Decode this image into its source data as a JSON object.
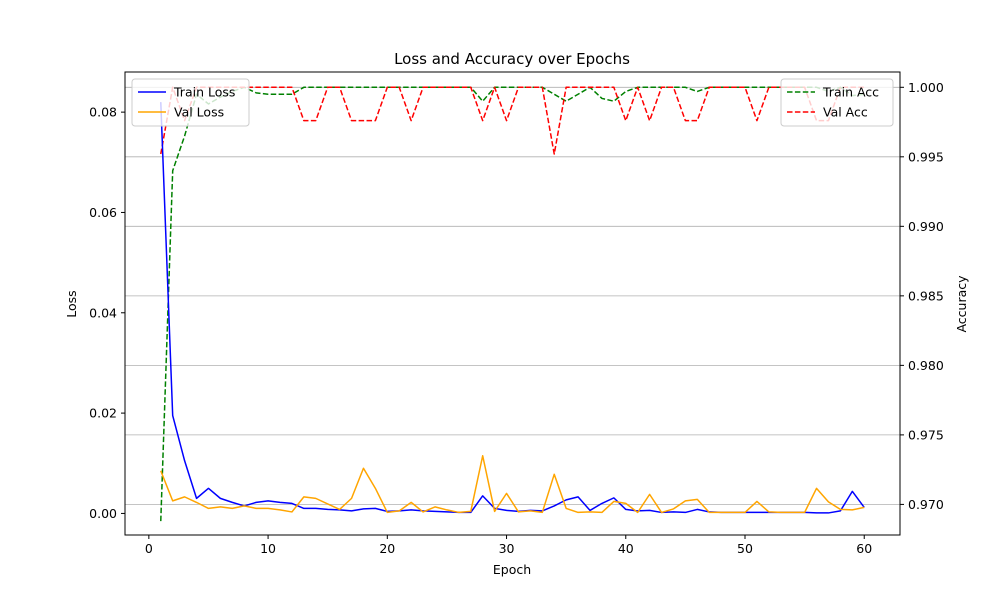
{
  "chart_data": {
    "type": "line",
    "title": "Loss and Accuracy over Epochs",
    "xlabel": "Epoch",
    "ylabel_left": "Loss",
    "ylabel_right": "Accuracy",
    "xlim": [
      -2,
      63
    ],
    "ylim_left": [
      -0.0043,
      0.088
    ],
    "ylim_right": [
      0.9678,
      1.0011
    ],
    "x_ticks": [
      0,
      10,
      20,
      30,
      40,
      50,
      60
    ],
    "y_left_ticks": [
      0.0,
      0.02,
      0.04,
      0.06,
      0.08
    ],
    "y_left_tick_labels": [
      "0.00",
      "0.02",
      "0.04",
      "0.06",
      "0.08"
    ],
    "y_right_ticks": [
      0.97,
      0.975,
      0.98,
      0.985,
      0.99,
      0.995,
      1.0
    ],
    "y_right_tick_labels": [
      "0.970",
      "0.975",
      "0.980",
      "0.985",
      "0.990",
      "0.995",
      "1.000"
    ],
    "grid": "horizontal, right axis",
    "legend_left_placement": "upper-left",
    "legend_right_placement": "upper-right",
    "epochs": [
      1,
      2,
      3,
      4,
      5,
      6,
      7,
      8,
      9,
      10,
      11,
      12,
      13,
      14,
      15,
      16,
      17,
      18,
      19,
      20,
      21,
      22,
      23,
      24,
      25,
      26,
      27,
      28,
      29,
      30,
      31,
      32,
      33,
      34,
      35,
      36,
      37,
      38,
      39,
      40,
      41,
      42,
      43,
      44,
      45,
      46,
      47,
      48,
      49,
      50,
      51,
      52,
      53,
      54,
      55,
      56,
      57,
      58,
      59,
      60
    ],
    "series": [
      {
        "name": "Train Loss",
        "axis": "left",
        "color": "#0000ff",
        "dash": "solid",
        "values": [
          0.082,
          0.0195,
          0.0105,
          0.003,
          0.005,
          0.003,
          0.0022,
          0.0015,
          0.0022,
          0.0025,
          0.0022,
          0.002,
          0.001,
          0.001,
          0.0008,
          0.0007,
          0.0005,
          0.0009,
          0.001,
          0.0004,
          0.0005,
          0.0007,
          0.0005,
          0.0004,
          0.0003,
          0.0002,
          0.0002,
          0.0035,
          0.001,
          0.0006,
          0.0004,
          0.0006,
          0.0005,
          0.0015,
          0.0027,
          0.0033,
          0.0006,
          0.002,
          0.0031,
          0.0008,
          0.0005,
          0.0006,
          0.0002,
          0.0003,
          0.0002,
          0.0008,
          0.0003,
          0.0002,
          0.0002,
          0.0002,
          0.0002,
          0.0002,
          0.0002,
          0.0002,
          0.0002,
          0.0001,
          0.0001,
          0.0005,
          0.0044,
          0.0012
        ]
      },
      {
        "name": "Val Loss",
        "axis": "left",
        "color": "#ffa500",
        "dash": "solid",
        "values": [
          0.0085,
          0.0025,
          0.0033,
          0.0022,
          0.001,
          0.0013,
          0.001,
          0.0015,
          0.001,
          0.001,
          0.0007,
          0.0003,
          0.0033,
          0.003,
          0.0019,
          0.0008,
          0.003,
          0.009,
          0.005,
          0.0002,
          0.0005,
          0.0022,
          0.0003,
          0.0013,
          0.0007,
          0.0002,
          0.0004,
          0.0115,
          0.0004,
          0.004,
          0.0003,
          0.0005,
          0.0002,
          0.0078,
          0.001,
          0.0002,
          0.0003,
          0.0002,
          0.0024,
          0.002,
          0.0002,
          0.0038,
          0.0002,
          0.0009,
          0.0025,
          0.0028,
          0.0002,
          0.0002,
          0.0002,
          0.0002,
          0.0024,
          0.0003,
          0.0002,
          0.0002,
          0.0002,
          0.005,
          0.0023,
          0.0008,
          0.0007,
          0.0012
        ]
      },
      {
        "name": "Train Acc",
        "axis": "right",
        "color": "#008000",
        "dash": "dashed",
        "values": [
          0.9688,
          0.994,
          0.9965,
          0.9995,
          0.9988,
          0.9993,
          0.9997,
          1.0,
          0.9996,
          0.9995,
          0.9995,
          0.9995,
          1.0,
          1.0,
          1.0,
          1.0,
          1.0,
          1.0,
          1.0,
          1.0,
          1.0,
          1.0,
          1.0,
          1.0,
          1.0,
          1.0,
          1.0,
          0.999,
          1.0,
          1.0,
          1.0,
          1.0,
          1.0,
          0.9995,
          0.999,
          0.9995,
          1.0,
          0.9992,
          0.999,
          0.9997,
          1.0,
          1.0,
          1.0,
          1.0,
          1.0,
          0.9997,
          1.0,
          1.0,
          1.0,
          1.0,
          1.0,
          1.0,
          1.0,
          1.0,
          1.0,
          1.0,
          0.9997,
          1.0,
          0.9994,
          0.9995
        ]
      },
      {
        "name": "Val Acc",
        "axis": "right",
        "color": "#ff0000",
        "dash": "dashed",
        "values": [
          0.9952,
          1.0,
          0.9976,
          1.0,
          1.0,
          1.0,
          1.0,
          1.0,
          1.0,
          1.0,
          1.0,
          1.0,
          0.9976,
          0.9976,
          1.0,
          1.0,
          0.9976,
          0.9976,
          0.9976,
          1.0,
          1.0,
          0.9976,
          1.0,
          1.0,
          1.0,
          1.0,
          1.0,
          0.9976,
          1.0,
          0.9976,
          1.0,
          1.0,
          1.0,
          0.9952,
          1.0,
          1.0,
          1.0,
          1.0,
          1.0,
          0.9976,
          1.0,
          0.9976,
          1.0,
          1.0,
          0.9976,
          0.9976,
          1.0,
          1.0,
          1.0,
          1.0,
          0.9976,
          1.0,
          1.0,
          1.0,
          1.0,
          0.9976,
          0.9976,
          1.0,
          1.0,
          1.0
        ]
      }
    ]
  }
}
